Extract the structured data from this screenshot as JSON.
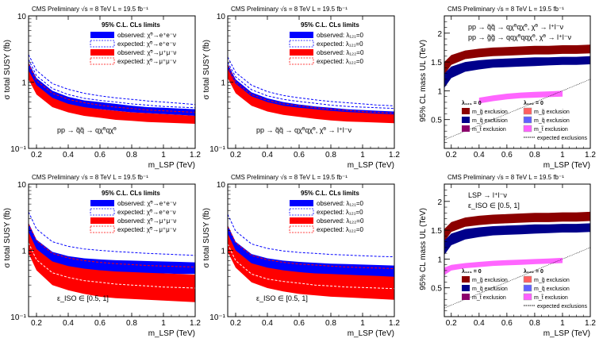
{
  "header": "CMS Preliminary  √s = 8 TeV  L = 19.5 fb⁻¹",
  "chart_data": [
    {
      "id": "p1",
      "type": "area",
      "xlabel": "m_LSP (TeV)",
      "ylabel": "σ total SUSY (fb)",
      "xlim": [
        0.15,
        1.2
      ],
      "ylim": [
        0.1,
        10
      ],
      "yscale": "log",
      "xticks": [
        "0.2",
        "0.4",
        "0.6",
        "0.8",
        "1",
        "1.2"
      ],
      "yticks": [
        "10⁻¹",
        "1",
        "10"
      ],
      "legend_title": "95% C.L. CLs limits",
      "legend": [
        "observed: χ̃⁰→e⁺e⁻ν",
        "expected: χ̃⁰→e⁺e⁻ν",
        "observed: χ̃⁰→μ⁺μ⁻ν",
        "expected: χ̃⁰→μ⁺μ⁻ν"
      ],
      "annotation": "pp → q̃q̃ → qχ̃⁰qχ̃⁰",
      "x": [
        0.15,
        0.2,
        0.3,
        0.4,
        0.5,
        0.6,
        0.7,
        0.8,
        0.9,
        1.0,
        1.1,
        1.2
      ],
      "series": [
        {
          "name": "observed e",
          "color": "#0000ff",
          "lo": [
            1.4,
            0.85,
            0.55,
            0.46,
            0.41,
            0.39,
            0.37,
            0.35,
            0.34,
            0.33,
            0.32,
            0.31
          ],
          "hi": [
            2.0,
            1.15,
            0.74,
            0.6,
            0.53,
            0.5,
            0.47,
            0.44,
            0.42,
            0.41,
            0.4,
            0.39
          ]
        },
        {
          "name": "observed mu",
          "color": "#ff0000",
          "lo": [
            1.1,
            0.65,
            0.42,
            0.35,
            0.31,
            0.29,
            0.27,
            0.26,
            0.25,
            0.245,
            0.24,
            0.235
          ],
          "hi": [
            1.5,
            0.9,
            0.58,
            0.47,
            0.42,
            0.39,
            0.37,
            0.35,
            0.34,
            0.33,
            0.32,
            0.31
          ]
        }
      ],
      "dashed": [
        {
          "color": "#0000ff",
          "values": [
            2.6,
            1.5,
            0.95,
            0.78,
            0.68,
            0.62,
            0.58,
            0.55,
            0.52,
            0.5,
            0.48,
            0.46
          ]
        },
        {
          "color": "#0000ff",
          "values": [
            2.2,
            1.25,
            0.8,
            0.65,
            0.57,
            0.53,
            0.5,
            0.47,
            0.45,
            0.43,
            0.42,
            0.41
          ]
        },
        {
          "color": "#ff0000",
          "values": [
            1.9,
            1.05,
            0.68,
            0.55,
            0.49,
            0.45,
            0.42,
            0.4,
            0.38,
            0.37,
            0.36,
            0.35
          ]
        }
      ]
    },
    {
      "id": "p2",
      "type": "area",
      "xlabel": "m_LSP (TeV)",
      "ylabel": "σ total SUSY (fb)",
      "xlim": [
        0.15,
        1.2
      ],
      "ylim": [
        0.1,
        10
      ],
      "yscale": "log",
      "xticks": [
        "0.2",
        "0.4",
        "0.6",
        "0.8",
        "1",
        "1.2"
      ],
      "yticks": [
        "10⁻¹",
        "1",
        "10"
      ],
      "legend_title": "95% C.L. CLs limits",
      "legend": [
        "observed: λ₁₂₁=0",
        "expected: λ₁₂₁=0",
        "observed: λ₁₂₂=0",
        "expected: λ₁₂₂=0"
      ],
      "annotation": "pp → q̃q̃ → qχ̃⁰qχ̃⁰, χ̃⁰ → l⁺l⁻ν",
      "x": [
        0.15,
        0.2,
        0.3,
        0.4,
        0.5,
        0.6,
        0.7,
        0.8,
        0.9,
        1.0,
        1.1,
        1.2
      ],
      "series": [
        {
          "name": "observed l121",
          "color": "#0000ff",
          "lo": [
            1.35,
            0.8,
            0.52,
            0.43,
            0.38,
            0.35,
            0.33,
            0.31,
            0.3,
            0.29,
            0.285,
            0.28
          ],
          "hi": [
            1.9,
            1.1,
            0.7,
            0.57,
            0.5,
            0.46,
            0.43,
            0.41,
            0.39,
            0.38,
            0.37,
            0.36
          ]
        },
        {
          "name": "observed l122",
          "color": "#ff0000",
          "lo": [
            1.15,
            0.68,
            0.44,
            0.36,
            0.32,
            0.3,
            0.28,
            0.265,
            0.255,
            0.25,
            0.245,
            0.24
          ],
          "hi": [
            1.6,
            0.95,
            0.61,
            0.5,
            0.44,
            0.41,
            0.39,
            0.37,
            0.355,
            0.345,
            0.335,
            0.325
          ]
        }
      ],
      "dashed": [
        {
          "color": "#0000ff",
          "values": [
            2.4,
            1.4,
            0.9,
            0.72,
            0.63,
            0.58,
            0.54,
            0.51,
            0.49,
            0.47,
            0.45,
            0.44
          ]
        },
        {
          "color": "#0000ff",
          "values": [
            2.0,
            1.2,
            0.77,
            0.62,
            0.55,
            0.51,
            0.48,
            0.45,
            0.43,
            0.42,
            0.41,
            0.4
          ]
        },
        {
          "color": "#ff0000",
          "values": [
            1.8,
            1.0,
            0.65,
            0.53,
            0.47,
            0.44,
            0.41,
            0.39,
            0.375,
            0.36,
            0.35,
            0.34
          ]
        }
      ]
    },
    {
      "id": "p3",
      "type": "area",
      "xlabel": "m_LSP (TeV)",
      "ylabel": "95% CL mass UL (TeV)",
      "xlim": [
        0.15,
        1.2
      ],
      "ylim": [
        0.0,
        2.3
      ],
      "yscale": "linear",
      "xticks": [
        "0.2",
        "0.4",
        "0.6",
        "0.8",
        "1",
        "1.2"
      ],
      "yticks": [
        "0.5",
        "1",
        "1.5",
        "2"
      ],
      "annotation_lines": [
        "pp → q̃q̃ → qχ̃⁰qχ̃⁰, χ̃⁰ → l⁺l⁻ν",
        "pp → g̃g̃ → qqχ̃⁰qqχ̃⁰, χ̃⁰ → l⁺l⁻ν"
      ],
      "legend_title_a": "λ₁₂₁ = 0",
      "legend_title_b": "λ₁₂₂ = 0",
      "legend": [
        "m_g̃ exclusion",
        "m_q̃ exclusion",
        "m_t̃ exclusion",
        "m_g̃ exclusion",
        "m_q̃ exclusion",
        "m_t̃ exclusion"
      ],
      "expected_label": "expected exclusions",
      "x": [
        0.15,
        0.2,
        0.3,
        0.4,
        0.5,
        0.6,
        0.7,
        0.8,
        0.9,
        1.0,
        1.1,
        1.2
      ],
      "series": [
        {
          "name": "gluino",
          "color": "#8b0000",
          "lo": [
            1.28,
            1.45,
            1.55,
            1.58,
            1.6,
            1.61,
            1.62,
            1.63,
            1.63,
            1.64,
            1.64,
            1.65
          ],
          "hi": [
            1.5,
            1.62,
            1.7,
            1.73,
            1.75,
            1.76,
            1.77,
            1.78,
            1.78,
            1.79,
            1.79,
            1.8
          ]
        },
        {
          "name": "squark",
          "color": "#00008b",
          "lo": [
            1.05,
            1.22,
            1.33,
            1.37,
            1.4,
            1.41,
            1.42,
            1.43,
            1.44,
            1.45,
            1.45,
            1.46
          ],
          "hi": [
            1.3,
            1.42,
            1.5,
            1.53,
            1.55,
            1.56,
            1.57,
            1.58,
            1.58,
            1.59,
            1.59,
            1.6
          ]
        },
        {
          "name": "stop",
          "color": "#ff66ff",
          "lo": [
            null,
            null,
            null,
            0.78,
            0.82,
            0.85,
            0.87,
            0.88,
            0.89,
            0.9,
            null,
            null
          ],
          "hi": [
            null,
            null,
            null,
            0.88,
            0.92,
            0.95,
            0.97,
            0.98,
            0.99,
            1.0,
            null,
            null
          ]
        }
      ]
    },
    {
      "id": "p4",
      "type": "area",
      "xlabel": "m_LSP (TeV)",
      "ylabel": "σ total SUSY (fb)",
      "xlim": [
        0.15,
        1.2
      ],
      "ylim": [
        0.1,
        10
      ],
      "yscale": "log",
      "xticks": [
        "0.2",
        "0.4",
        "0.6",
        "0.8",
        "1",
        "1.2"
      ],
      "yticks": [
        "10⁻¹",
        "1",
        "10"
      ],
      "legend_title": "95% C.L. CLs limits",
      "legend": [
        "observed: χ̃⁰→e⁺e⁻ν",
        "expected: χ̃⁰→e⁺e⁻ν",
        "observed: χ̃⁰→μ⁺μ⁻ν",
        "expected: χ̃⁰→μ⁺μ⁻ν"
      ],
      "annotation": "ε_ISO ∈ [0.5, 1]",
      "x": [
        0.15,
        0.2,
        0.3,
        0.4,
        0.5,
        0.6,
        0.7,
        0.8,
        0.9,
        1.0,
        1.1,
        1.2
      ],
      "series": [
        {
          "name": "observed e",
          "color": "#0000ff",
          "lo": [
            1.6,
            0.95,
            0.62,
            0.54,
            0.5,
            0.48,
            0.47,
            0.46,
            0.45,
            0.45,
            0.44,
            0.44
          ],
          "hi": [
            2.6,
            1.45,
            0.95,
            0.82,
            0.76,
            0.73,
            0.71,
            0.7,
            0.69,
            0.68,
            0.67,
            0.66
          ]
        },
        {
          "name": "observed mu",
          "color": "#ff0000",
          "lo": [
            0.9,
            0.5,
            0.3,
            0.25,
            0.22,
            0.2,
            0.19,
            0.185,
            0.18,
            0.175,
            0.17,
            0.165
          ],
          "hi": [
            1.9,
            1.05,
            0.68,
            0.58,
            0.53,
            0.5,
            0.48,
            0.47,
            0.46,
            0.45,
            0.44,
            0.43
          ]
        }
      ],
      "dashed": [
        {
          "color": "#0000ff",
          "values": [
            3.8,
            2.1,
            1.35,
            1.15,
            1.05,
            1.0,
            0.96,
            0.93,
            0.9,
            0.88,
            0.86,
            0.84
          ]
        },
        {
          "color": "#ff0000",
          "values": [
            2.5,
            1.4,
            0.9,
            0.77,
            0.7,
            0.66,
            0.63,
            0.61,
            0.59,
            0.58,
            0.57,
            0.56
          ]
        },
        {
          "color": "#ffffff",
          "values": [
            1.3,
            0.72,
            0.46,
            0.39,
            0.35,
            0.33,
            0.31,
            0.3,
            0.29,
            0.28,
            0.275,
            0.27
          ]
        }
      ]
    },
    {
      "id": "p5",
      "type": "area",
      "xlabel": "m_LSP (TeV)",
      "ylabel": "σ total SUSY (fb)",
      "xlim": [
        0.15,
        1.2
      ],
      "ylim": [
        0.1,
        10
      ],
      "yscale": "log",
      "xticks": [
        "0.2",
        "0.4",
        "0.6",
        "0.8",
        "1",
        "1.2"
      ],
      "yticks": [
        "10⁻¹",
        "1",
        "10"
      ],
      "legend_title": "95% C.L. CLs limits",
      "legend": [
        "observed: λ₁₂₁=0",
        "expected: λ₁₂₁=0",
        "observed: λ₁₂₂=0",
        "expected: λ₁₂₂=0"
      ],
      "annotation": "ε_ISO ∈ [0.5, 1]",
      "x": [
        0.15,
        0.2,
        0.3,
        0.4,
        0.5,
        0.6,
        0.7,
        0.8,
        0.9,
        1.0,
        1.1,
        1.2
      ],
      "series": [
        {
          "name": "observed l121",
          "color": "#0000ff",
          "lo": [
            1.5,
            0.9,
            0.58,
            0.5,
            0.46,
            0.44,
            0.43,
            0.42,
            0.41,
            0.4,
            0.4,
            0.39
          ],
          "hi": [
            2.4,
            1.35,
            0.88,
            0.76,
            0.7,
            0.67,
            0.65,
            0.63,
            0.62,
            0.61,
            0.6,
            0.59
          ]
        },
        {
          "name": "observed l122",
          "color": "#ff0000",
          "lo": [
            0.95,
            0.55,
            0.33,
            0.27,
            0.24,
            0.22,
            0.21,
            0.2,
            0.195,
            0.19,
            0.185,
            0.18
          ],
          " hi": null,
          "hi": [
            1.8,
            1.0,
            0.64,
            0.55,
            0.5,
            0.47,
            0.45,
            0.44,
            0.43,
            0.42,
            0.41,
            0.4
          ]
        }
      ],
      "dashed": [
        {
          "color": "#0000ff",
          "values": [
            3.5,
            1.95,
            1.25,
            1.07,
            0.98,
            0.93,
            0.9,
            0.87,
            0.85,
            0.83,
            0.81,
            0.8
          ]
        },
        {
          "color": "#ff0000",
          "values": [
            2.3,
            1.3,
            0.84,
            0.72,
            0.66,
            0.62,
            0.6,
            0.58,
            0.56,
            0.55,
            0.54,
            0.53
          ]
        },
        {
          "color": "#ffffff",
          "values": [
            1.25,
            0.7,
            0.44,
            0.37,
            0.34,
            0.32,
            0.3,
            0.29,
            0.28,
            0.275,
            0.27,
            0.265
          ]
        }
      ]
    },
    {
      "id": "p6",
      "type": "area",
      "xlabel": "m_LSP (TeV)",
      "ylabel": "95% CL mass UL (TeV)",
      "xlim": [
        0.15,
        1.2
      ],
      "ylim": [
        0.0,
        2.3
      ],
      "yscale": "linear",
      "xticks": [
        "0.2",
        "0.4",
        "0.6",
        "0.8",
        "1",
        "1.2"
      ],
      "yticks": [
        "0.5",
        "1",
        "1.5",
        "2"
      ],
      "annotation_lines": [
        "LSP → l⁺l⁻ν",
        "ε_ISO ∈ [0.5, 1]"
      ],
      "legend_title_a": "λ₁₂₁ = 0",
      "legend_title_b": "λ₁₂₂ = 0",
      "legend": [
        "m_g̃ exclusion",
        "m_q̃ exclusion",
        "m_t̃ exclusion",
        "m_g̃ exclusion",
        "m_q̃ exclusion",
        "m_t̃ exclusion"
      ],
      "expected_label": "expected exclusions",
      "x": [
        0.15,
        0.2,
        0.3,
        0.4,
        0.5,
        0.6,
        0.7,
        0.8,
        0.9,
        1.0,
        1.1,
        1.2
      ],
      "series": [
        {
          "name": "gluino",
          "color": "#8b0000",
          "lo": [
            1.3,
            1.47,
            1.56,
            1.59,
            1.61,
            1.62,
            1.63,
            1.64,
            1.64,
            1.65,
            1.65,
            1.66
          ],
          "hi": [
            1.52,
            1.64,
            1.72,
            1.75,
            1.77,
            1.78,
            1.79,
            1.8,
            1.8,
            1.81,
            1.81,
            1.82
          ]
        },
        {
          "name": "squark",
          "color": "#00008b",
          "lo": [
            1.07,
            1.24,
            1.34,
            1.38,
            1.41,
            1.42,
            1.43,
            1.44,
            1.45,
            1.46,
            1.46,
            1.47
          ],
          "hi": [
            1.32,
            1.44,
            1.52,
            1.55,
            1.57,
            1.58,
            1.59,
            1.6,
            1.6,
            1.61,
            1.61,
            1.62
          ]
        },
        {
          "name": "stop",
          "color": "#ff66ff",
          "lo": [
            0.72,
            0.8,
            0.84,
            0.86,
            0.88,
            0.89,
            0.9,
            0.91,
            0.92,
            0.93,
            null,
            null
          ],
          "hi": [
            0.85,
            0.9,
            0.93,
            0.95,
            0.97,
            0.98,
            0.99,
            1.0,
            1.01,
            1.02,
            null,
            null
          ]
        }
      ]
    }
  ]
}
